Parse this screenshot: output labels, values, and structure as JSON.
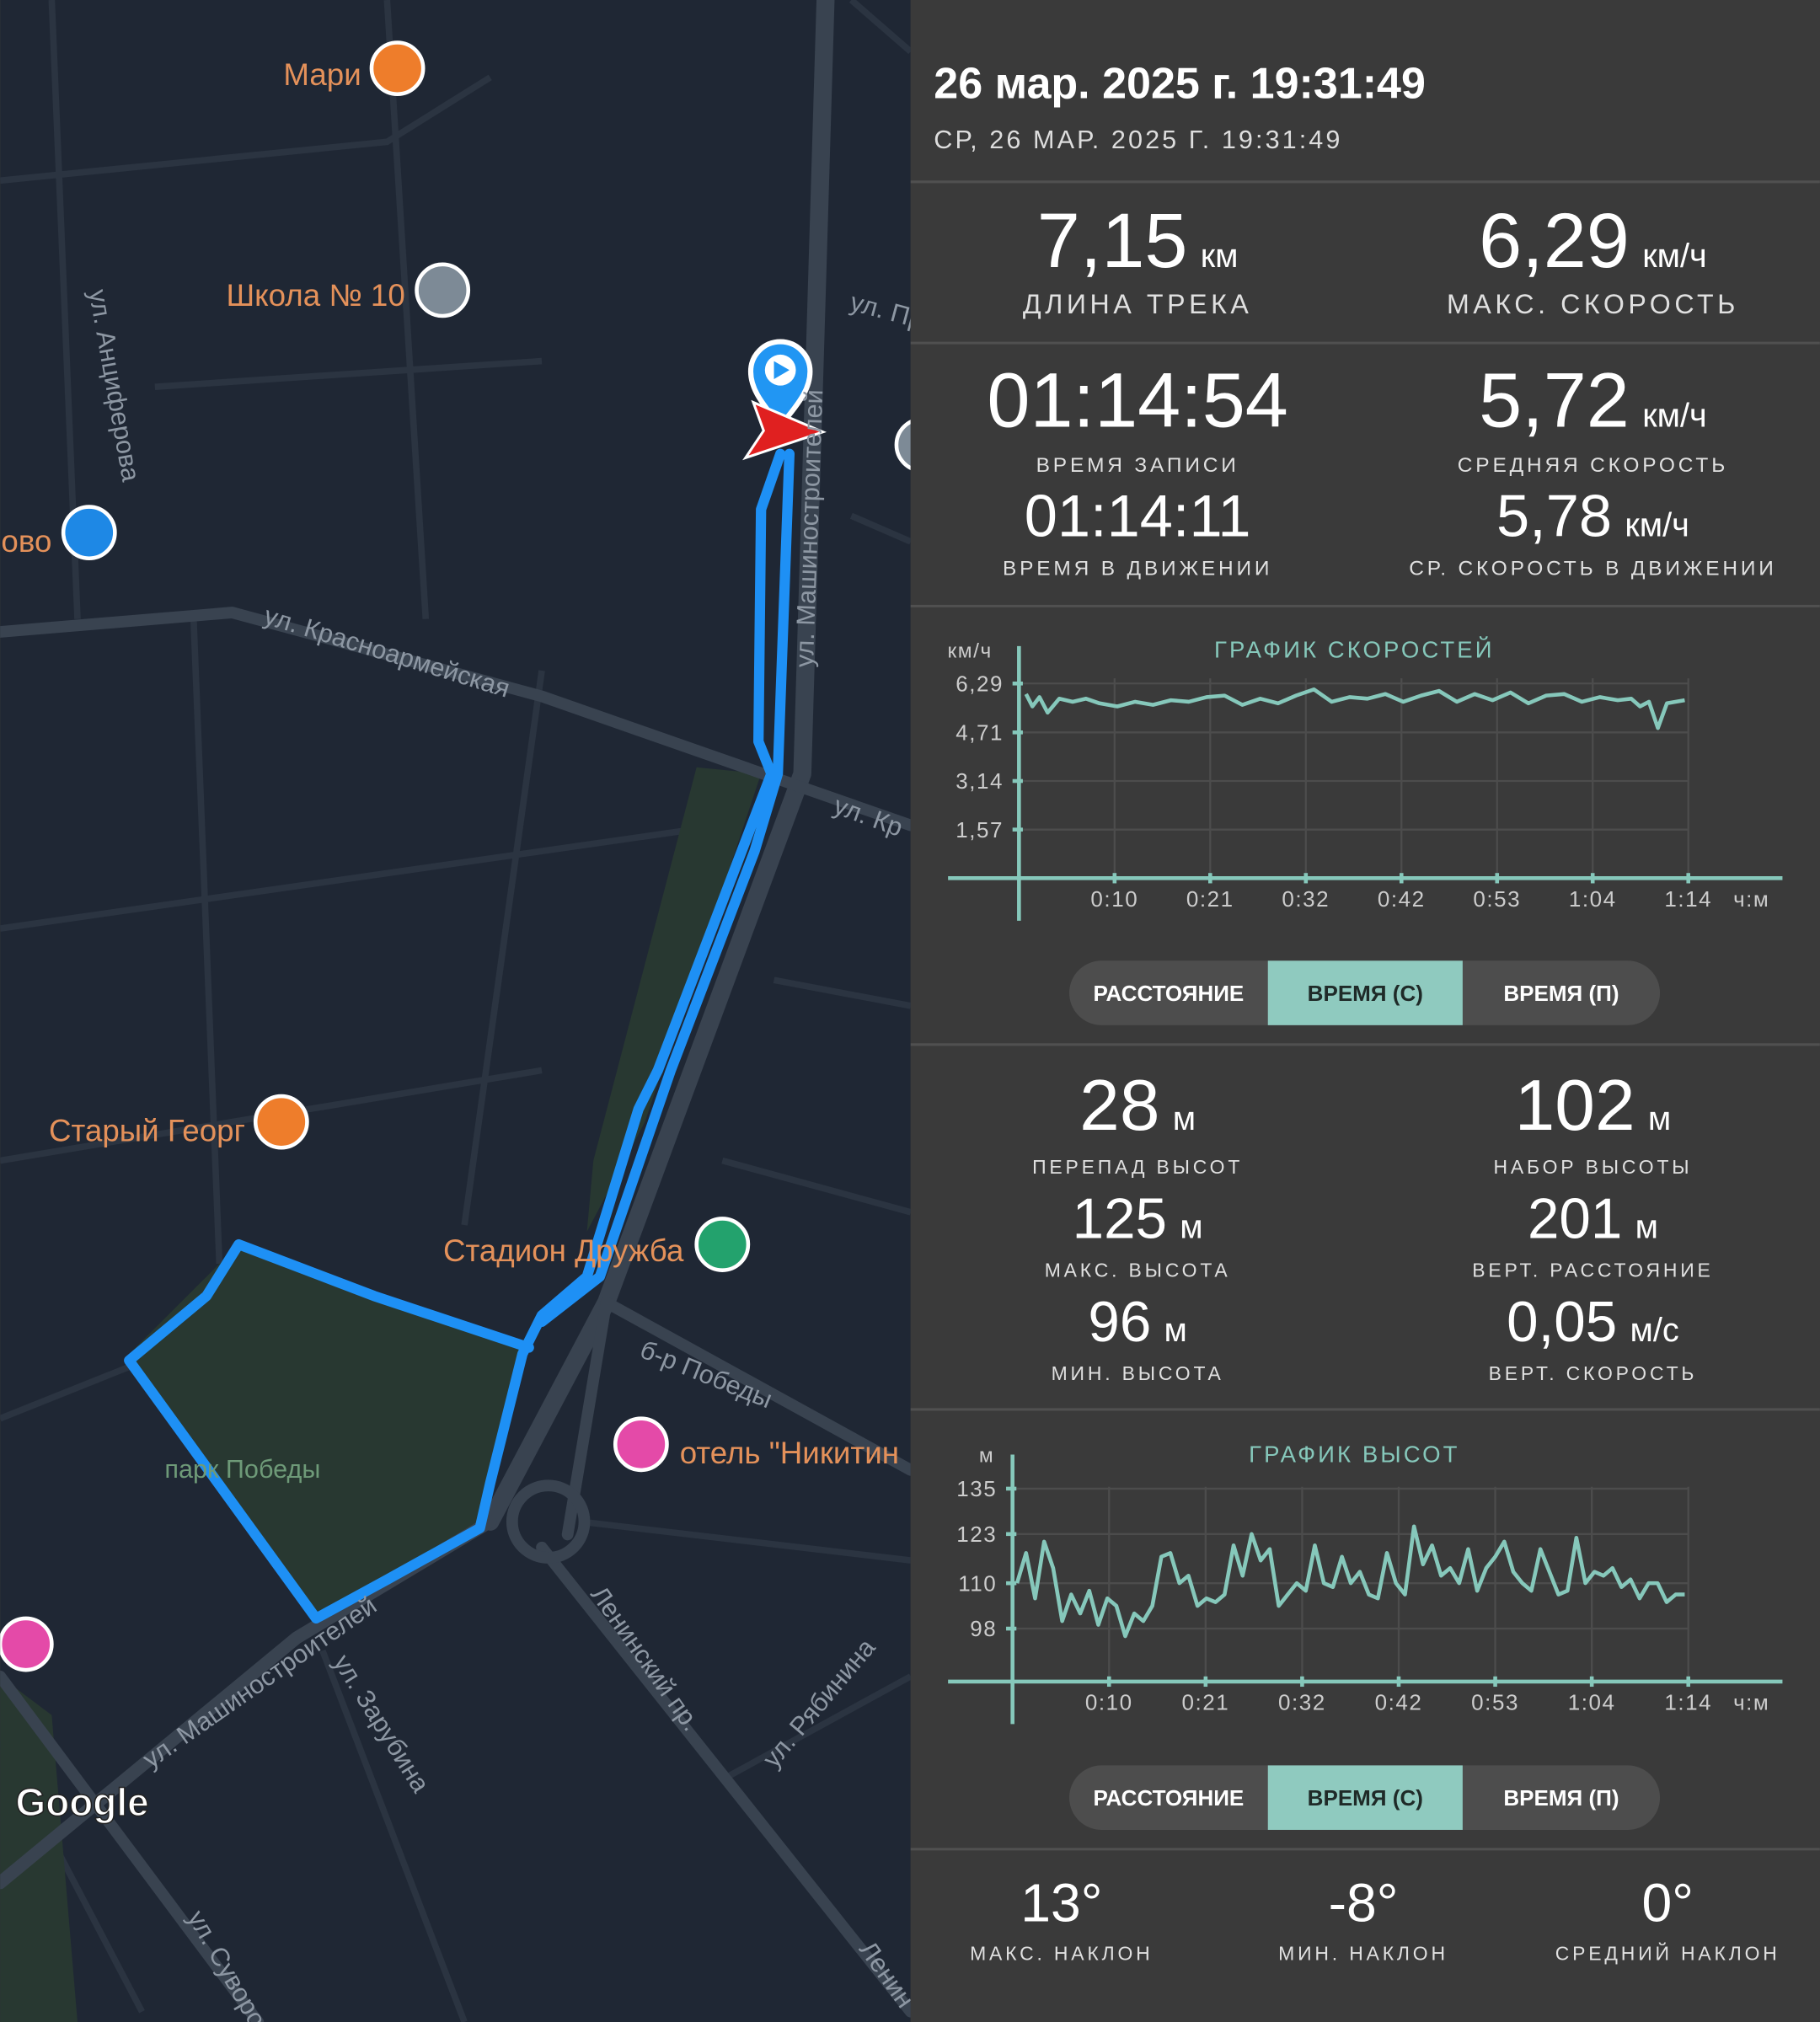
{
  "header": {
    "title": "26 мар. 2025 г. 19:31:49",
    "subtitle": "СР, 26 МАР. 2025 Г. 19:31:49"
  },
  "stats": [
    {
      "value": "7,15",
      "unit": "км",
      "label": "ДЛИНА ТРЕКА"
    },
    {
      "value": "6,29",
      "unit": "км/ч",
      "label": "МАКС. СКОРОСТЬ"
    },
    {
      "value": "01:14:54",
      "label": "ВРЕМЯ ЗАПИСИ"
    },
    {
      "value": "5,72",
      "unit": "км/ч",
      "label": "СРЕДНЯЯ СКОРОСТЬ"
    },
    {
      "value": "01:14:11",
      "label": "ВРЕМЯ В ДВИЖЕНИИ"
    },
    {
      "value": "5,78",
      "unit": "км/ч",
      "label": "СР. СКОРОСТЬ В ДВИЖЕНИИ"
    }
  ],
  "speed_chart": {
    "type": "line",
    "title": "ГРАФИК СКОРОСТЕЙ",
    "y_label": "км/ч",
    "x_label": "ч:м",
    "color": "#86c8bb",
    "grid": true,
    "xlim": [
      0,
      74.9
    ],
    "ylim": [
      0,
      7.5
    ],
    "xticks": [
      {
        "value": 10.7,
        "label": "0:10"
      },
      {
        "value": 21.4,
        "label": "0:21"
      },
      {
        "value": 32.1,
        "label": "0:32"
      },
      {
        "value": 42.8,
        "label": "0:42"
      },
      {
        "value": 53.5,
        "label": "0:53"
      },
      {
        "value": 64.2,
        "label": "1:04"
      },
      {
        "value": 74.9,
        "label": "1:14"
      }
    ],
    "yticks": [
      {
        "value": 1.57,
        "label": "1,57"
      },
      {
        "value": 3.14,
        "label": "3,14"
      },
      {
        "value": 4.71,
        "label": "4,71"
      },
      {
        "value": 6.29,
        "label": "6,29"
      }
    ],
    "x": [
      0.8,
      1.5,
      2.3,
      3.2,
      4.5,
      6,
      7.5,
      9,
      11,
      13,
      15,
      17,
      19,
      21,
      23,
      25,
      27,
      29,
      31,
      33,
      35,
      37,
      39,
      41,
      43,
      45,
      47,
      49,
      51,
      53,
      55,
      57,
      59,
      61,
      63,
      65,
      67,
      68.5,
      69.5,
      70.5,
      71.5,
      72.5,
      74.5
    ],
    "values": [
      5.95,
      5.55,
      5.85,
      5.35,
      5.8,
      5.7,
      5.8,
      5.65,
      5.55,
      5.7,
      5.6,
      5.75,
      5.7,
      5.85,
      5.9,
      5.6,
      5.8,
      5.65,
      5.9,
      6.1,
      5.7,
      5.85,
      5.8,
      5.95,
      5.7,
      5.9,
      6.05,
      5.7,
      5.95,
      5.75,
      6.0,
      5.65,
      5.9,
      5.95,
      5.7,
      5.85,
      5.75,
      5.8,
      5.55,
      5.7,
      4.85,
      5.65,
      5.75
    ]
  },
  "speed_tabs": {
    "items": [
      "РАССТОЯНИЕ",
      "ВРЕМЯ (С)",
      "ВРЕМЯ (П)"
    ],
    "selected": 1
  },
  "elevation_stats": [
    {
      "value": "28",
      "unit": "м",
      "label": "ПЕРЕПАД ВЫСОТ"
    },
    {
      "value": "102",
      "unit": "м",
      "label": "НАБОР ВЫСОТЫ"
    },
    {
      "value": "125",
      "unit": "м",
      "label": "МАКС. ВЫСОТА"
    },
    {
      "value": "201",
      "unit": "м",
      "label": "ВЕРТ. РАССТОЯНИЕ"
    },
    {
      "value": "96",
      "unit": "м",
      "label": "МИН. ВЫСОТА"
    },
    {
      "value": "0,05",
      "unit": "м/с",
      "label": "ВЕРТ. СКОРОСТЬ"
    }
  ],
  "elevation_chart": {
    "type": "line",
    "title": "ГРАФИК ВЫСОТ",
    "y_label": "м",
    "x_label": "ч:м",
    "color": "#86c8bb",
    "grid": true,
    "xlim": [
      0,
      74.9
    ],
    "ylim": [
      84,
      144
    ],
    "xticks": [
      {
        "value": 10.7,
        "label": "0:10"
      },
      {
        "value": 21.4,
        "label": "0:21"
      },
      {
        "value": 32.1,
        "label": "0:32"
      },
      {
        "value": 42.8,
        "label": "0:42"
      },
      {
        "value": 53.5,
        "label": "0:53"
      },
      {
        "value": 64.2,
        "label": "1:04"
      },
      {
        "value": 74.9,
        "label": "1:14"
      }
    ],
    "yticks": [
      98,
      110,
      123,
      135
    ],
    "x": [
      0.5,
      1.5,
      2.5,
      3.5,
      4.5,
      5.5,
      6.5,
      7.5,
      8.5,
      9.5,
      10.5,
      11.5,
      12.5,
      13.5,
      14.5,
      15.5,
      16.5,
      17.5,
      18.5,
      19.5,
      20.5,
      21.5,
      22.5,
      23.5,
      24.5,
      25.5,
      26.5,
      27.5,
      28.5,
      29.5,
      30.5,
      31.5,
      32.5,
      33.5,
      34.5,
      35.5,
      36.5,
      37.5,
      38.5,
      39.5,
      40.5,
      41.5,
      42.5,
      43.5,
      44.5,
      45.5,
      46.5,
      47.5,
      48.5,
      49.5,
      50.5,
      51.5,
      52.5,
      53.5,
      54.5,
      55.5,
      56.5,
      57.5,
      58.5,
      59.5,
      60.5,
      61.5,
      62.5,
      63.5,
      64.5,
      65.5,
      66.5,
      67.5,
      68.5,
      69.5,
      70.5,
      71.5,
      72.5,
      73.5,
      74.5
    ],
    "values": [
      110,
      118,
      106,
      121,
      114,
      100,
      107,
      102,
      108,
      99,
      106,
      104,
      96,
      102,
      100,
      104,
      117,
      118,
      110,
      112,
      104,
      106,
      105,
      107,
      120,
      112,
      123,
      116,
      119,
      104,
      107,
      110,
      108,
      120,
      110,
      109,
      117,
      110,
      113,
      107,
      106,
      118,
      110,
      107,
      125,
      115,
      120,
      112,
      114,
      110,
      119,
      108,
      114,
      117,
      121,
      113,
      110,
      108,
      119,
      113,
      107,
      108,
      122,
      110,
      113,
      112,
      114,
      109,
      111,
      106,
      110,
      110,
      105,
      107,
      107
    ]
  },
  "elevation_tabs": {
    "items": [
      "РАССТОЯНИЕ",
      "ВРЕМЯ (С)",
      "ВРЕМЯ (П)"
    ],
    "selected": 1
  },
  "slope_stats": [
    {
      "value": "13°",
      "label": "МАКС. НАКЛОН"
    },
    {
      "value": "-8°",
      "label": "МИН. НАКЛОН"
    },
    {
      "value": "0°",
      "label": "СРЕДНИЙ НАКЛОН"
    }
  ],
  "map": {
    "labels": [
      "Мари",
      "Школа № 10",
      "ул. Анциферова",
      "ово",
      "ул. Красноармейская",
      "ул. Машиностроителей",
      "ул. Пр",
      "ул. Кр",
      "Старый Георг",
      "Стадион Дружба",
      "б-р Победы",
      "отель \"Никитин",
      "парк Победы",
      "ул. Машиностроителей",
      "ул. Зарубина",
      "Ленинский пр.",
      "ул. Рябинина",
      "ул. Суворо",
      "Ленин"
    ],
    "attribution": "Google"
  }
}
